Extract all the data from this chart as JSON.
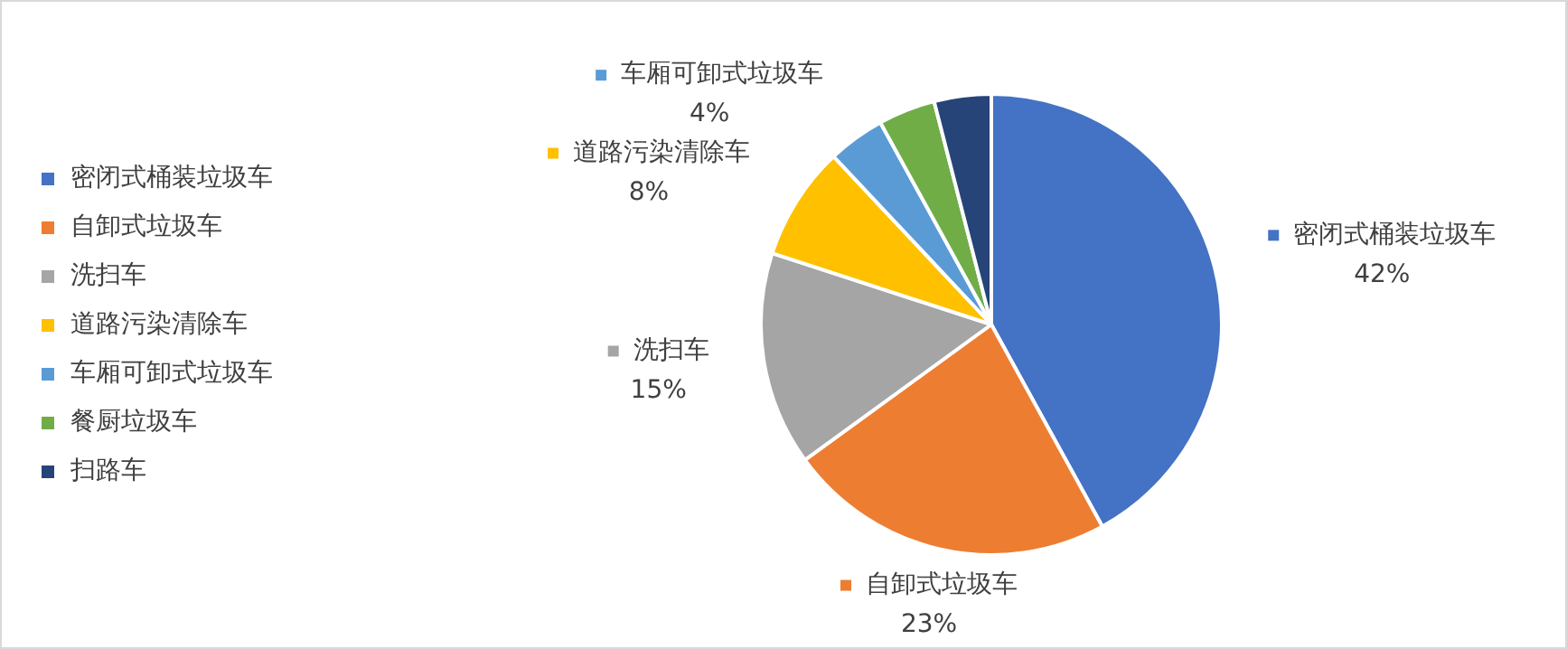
{
  "chart_data": {
    "type": "pie",
    "categories": [
      "密闭式桶装垃圾车",
      "自卸式垃圾车",
      "洗扫车",
      "道路污染清除车",
      "车厢可卸式垃圾车",
      "餐厨垃圾车",
      "扫路车"
    ],
    "values": [
      42,
      23,
      15,
      8,
      4,
      4,
      4
    ],
    "colors": [
      "#4472c4",
      "#ed7d31",
      "#a5a5a5",
      "#ffc000",
      "#5b9bd5",
      "#70ad47",
      "#264478"
    ],
    "value_labels": [
      "42%",
      "23%",
      "15%",
      "8%",
      "4%",
      null,
      null
    ],
    "legend": "left"
  }
}
